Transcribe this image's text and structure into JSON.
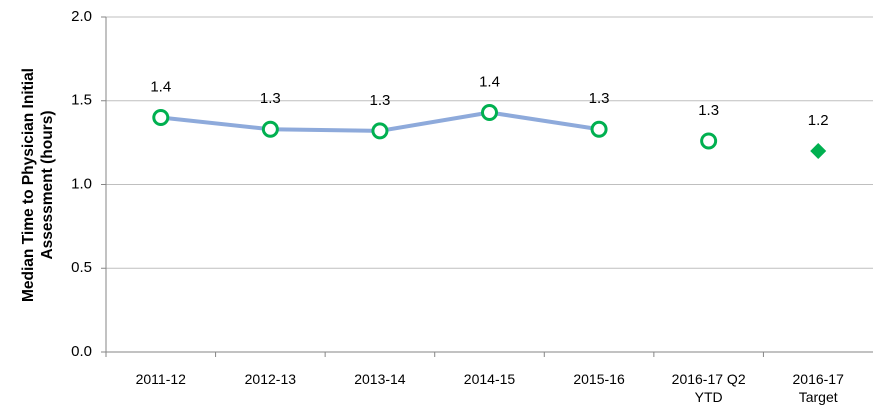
{
  "chart_data": {
    "type": "line",
    "y_label": "Median Time to Physician Initial Assessment (hours)",
    "categories": [
      "2011-12",
      "2012-13",
      "2013-14",
      "2014-15",
      "2015-16",
      "2016-17 Q2 YTD",
      "2016-17 Target"
    ],
    "series": [
      {
        "color": "#8eaadb",
        "marker": "circle-open",
        "marker_color": "#00b050",
        "line": true,
        "values": [
          1.4,
          1.33,
          1.32,
          1.43,
          1.33,
          null,
          null
        ],
        "value_labels": [
          "1.4",
          "1.3",
          "1.3",
          "1.4",
          "1.3",
          null,
          null
        ]
      },
      {
        "color": "#00b050",
        "marker": "circle-open",
        "marker_color": "#00b050",
        "line": false,
        "values": [
          null,
          null,
          null,
          null,
          null,
          1.26,
          null
        ],
        "value_labels": [
          null,
          null,
          null,
          null,
          null,
          "1.3",
          null
        ]
      },
      {
        "color": "#00b050",
        "marker": "diamond",
        "marker_color": "#00b050",
        "line": false,
        "values": [
          null,
          null,
          null,
          null,
          null,
          null,
          1.2
        ],
        "value_labels": [
          null,
          null,
          null,
          null,
          null,
          null,
          "1.2"
        ]
      }
    ],
    "ylim": [
      0,
      2
    ],
    "yticks": [
      {
        "value": 0,
        "label": "0.0"
      },
      0.5,
      {
        "value": 1,
        "label": "1.0"
      },
      1.5,
      {
        "value": 2,
        "label": "2.0"
      }
    ],
    "grid": true
  }
}
